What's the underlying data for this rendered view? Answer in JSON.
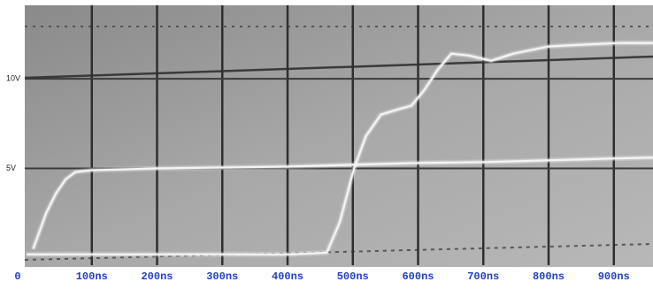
{
  "chart_data": {
    "type": "line",
    "xlim": [
      0,
      960
    ],
    "ylim": [
      -0.4,
      14
    ],
    "xticks": [
      0,
      {
        "value": 100,
        "label": "100ns"
      },
      {
        "value": 200,
        "label": "200ns"
      },
      {
        "value": 300,
        "label": "300ns"
      },
      {
        "value": 400,
        "label": "400ns"
      },
      {
        "value": 500,
        "label": "500ns"
      },
      {
        "value": 600,
        "label": "600ns"
      },
      {
        "value": 700,
        "label": "700ns"
      },
      {
        "value": 800,
        "label": "800ns"
      },
      {
        "value": 900,
        "label": "900ns"
      }
    ],
    "yticks": [
      {
        "value": 5,
        "label": "5V"
      },
      {
        "value": 10,
        "label": "10V"
      }
    ],
    "grid": true,
    "series": [
      {
        "color": "#f4f4f4",
        "x": [
          10,
          20,
          30,
          45,
          60,
          75,
          100,
          200,
          300,
          400,
          500,
          600,
          700,
          800,
          900,
          960
        ],
        "values": [
          0.5,
          1.5,
          2.5,
          3.6,
          4.4,
          4.8,
          4.9,
          5.0,
          5.05,
          5.1,
          5.2,
          5.3,
          5.35,
          5.45,
          5.55,
          5.6
        ]
      },
      {
        "color": "#f4f4f4",
        "x": [
          0,
          100,
          200,
          300,
          400,
          460,
          480,
          502,
          520,
          543,
          570,
          590,
          610,
          630,
          651,
          678,
          712,
          746,
          800,
          850,
          909,
          960
        ],
        "values": [
          0.2,
          0.2,
          0.2,
          0.2,
          0.2,
          0.3,
          2.0,
          5.0,
          6.8,
          8.0,
          8.3,
          8.5,
          9.4,
          10.5,
          11.4,
          11.3,
          11.0,
          11.4,
          11.8,
          11.9,
          12.0,
          12.0
        ]
      }
    ]
  }
}
